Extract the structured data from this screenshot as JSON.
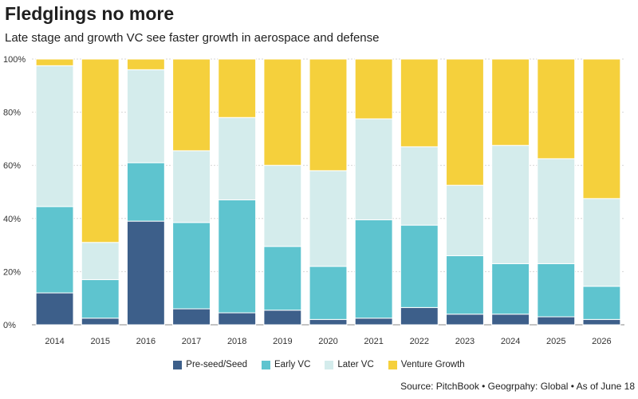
{
  "title": "Fledglings no more",
  "subtitle": "Late stage and growth VC see faster growth in aerospace and defense",
  "source": "Source: PitchBook • Geogrpahy: Global • As of June 18",
  "colors": {
    "background": "#ffffff",
    "grid": "#d6d6d6",
    "axis": "#888888"
  },
  "chart_data": {
    "type": "bar",
    "stacked": true,
    "normalized": true,
    "categories": [
      "2014",
      "2015",
      "2016",
      "2017",
      "2018",
      "2019",
      "2020",
      "2021",
      "2022",
      "2023",
      "2024",
      "2025",
      "2026"
    ],
    "y_ticks": [
      "0%",
      "20%",
      "40%",
      "60%",
      "80%",
      "100%"
    ],
    "ylim": [
      0,
      100
    ],
    "grid": true,
    "legend_position": "bottom",
    "series": [
      {
        "name": "Pre-seed/Seed",
        "color": "#3d5f8a",
        "values": [
          12,
          2.5,
          39,
          6,
          4.5,
          5.5,
          2,
          2.5,
          6.5,
          4,
          4,
          3,
          2
        ]
      },
      {
        "name": "Early VC",
        "color": "#5ec4cf",
        "values": [
          32.5,
          14.5,
          22,
          32.5,
          42.5,
          24,
          20,
          37,
          31,
          22,
          19,
          20,
          12.5
        ]
      },
      {
        "name": "Later VC",
        "color": "#d4ecec",
        "values": [
          53,
          14,
          35,
          27,
          31,
          30.5,
          36,
          38,
          29.5,
          26.5,
          44.5,
          39.5,
          33
        ]
      },
      {
        "name": "Venture Growth",
        "color": "#f5d03c",
        "values": [
          2.5,
          69,
          4,
          34.5,
          22,
          40,
          42,
          22.5,
          33,
          47.5,
          32.5,
          37.5,
          52.5
        ]
      }
    ]
  }
}
